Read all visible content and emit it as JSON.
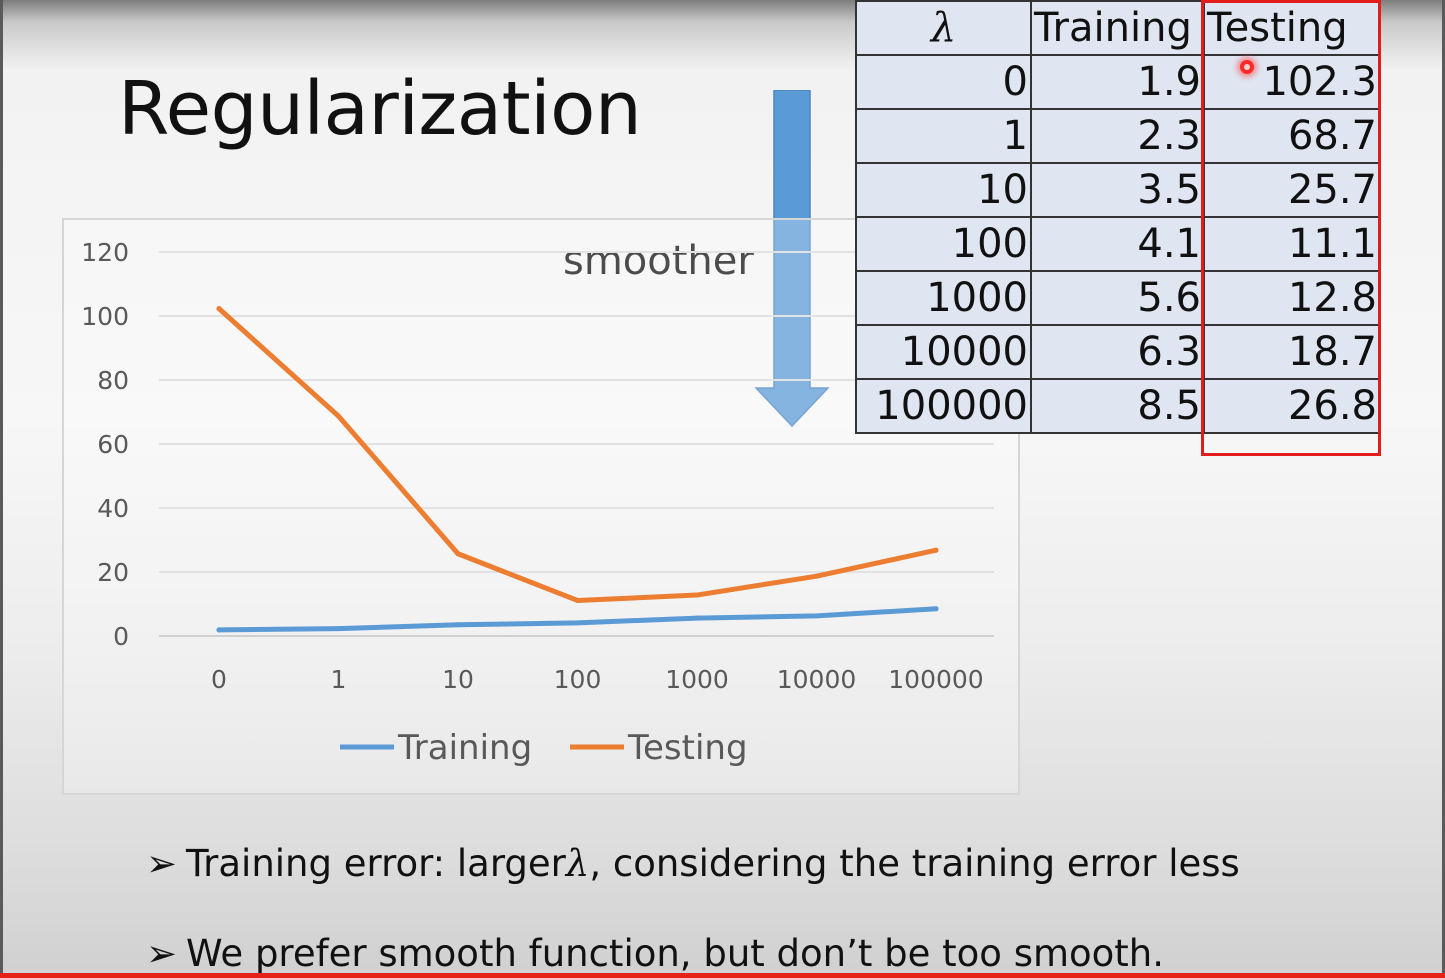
{
  "slide": {
    "title": "Regularization",
    "arrow_label": "smoother",
    "colors": {
      "arrow": "#5b9bd5",
      "highlight": "#e21b1b",
      "table_fill": "#dfe6f1"
    }
  },
  "table": {
    "headers": [
      "λ",
      "Training",
      "Testing"
    ],
    "rows": [
      [
        "0",
        "1.9",
        "102.3"
      ],
      [
        "1",
        "2.3",
        "68.7"
      ],
      [
        "10",
        "3.5",
        "25.7"
      ],
      [
        "100",
        "4.1",
        "11.1"
      ],
      [
        "1000",
        "5.6",
        "12.8"
      ],
      [
        "10000",
        "6.3",
        "18.7"
      ],
      [
        "100000",
        "8.5",
        "26.8"
      ]
    ],
    "highlighted_column": "Testing"
  },
  "chart_data": {
    "type": "line",
    "categories": [
      "0",
      "1",
      "10",
      "100",
      "1000",
      "10000",
      "100000"
    ],
    "series": [
      {
        "name": "Training",
        "color": "#5b9bd5",
        "values": [
          1.9,
          2.3,
          3.5,
          4.1,
          5.6,
          6.3,
          8.5
        ]
      },
      {
        "name": "Testing",
        "color": "#ed7d31",
        "values": [
          102.3,
          68.7,
          25.7,
          11.1,
          12.8,
          18.7,
          26.8
        ]
      }
    ],
    "yticks": [
      "120",
      "100",
      "80",
      "60",
      "40",
      "20",
      "0"
    ],
    "ylim": [
      0,
      120
    ],
    "grid": true,
    "legend": "bottom"
  },
  "bullets": [
    {
      "marker": "➢",
      "prefix": "Training error: larger",
      "symbol": "λ",
      "suffix": ", considering the training error less"
    },
    {
      "marker": "➢",
      "prefix": "We prefer smooth function, but don’t be too smooth.",
      "symbol": "",
      "suffix": ""
    }
  ]
}
